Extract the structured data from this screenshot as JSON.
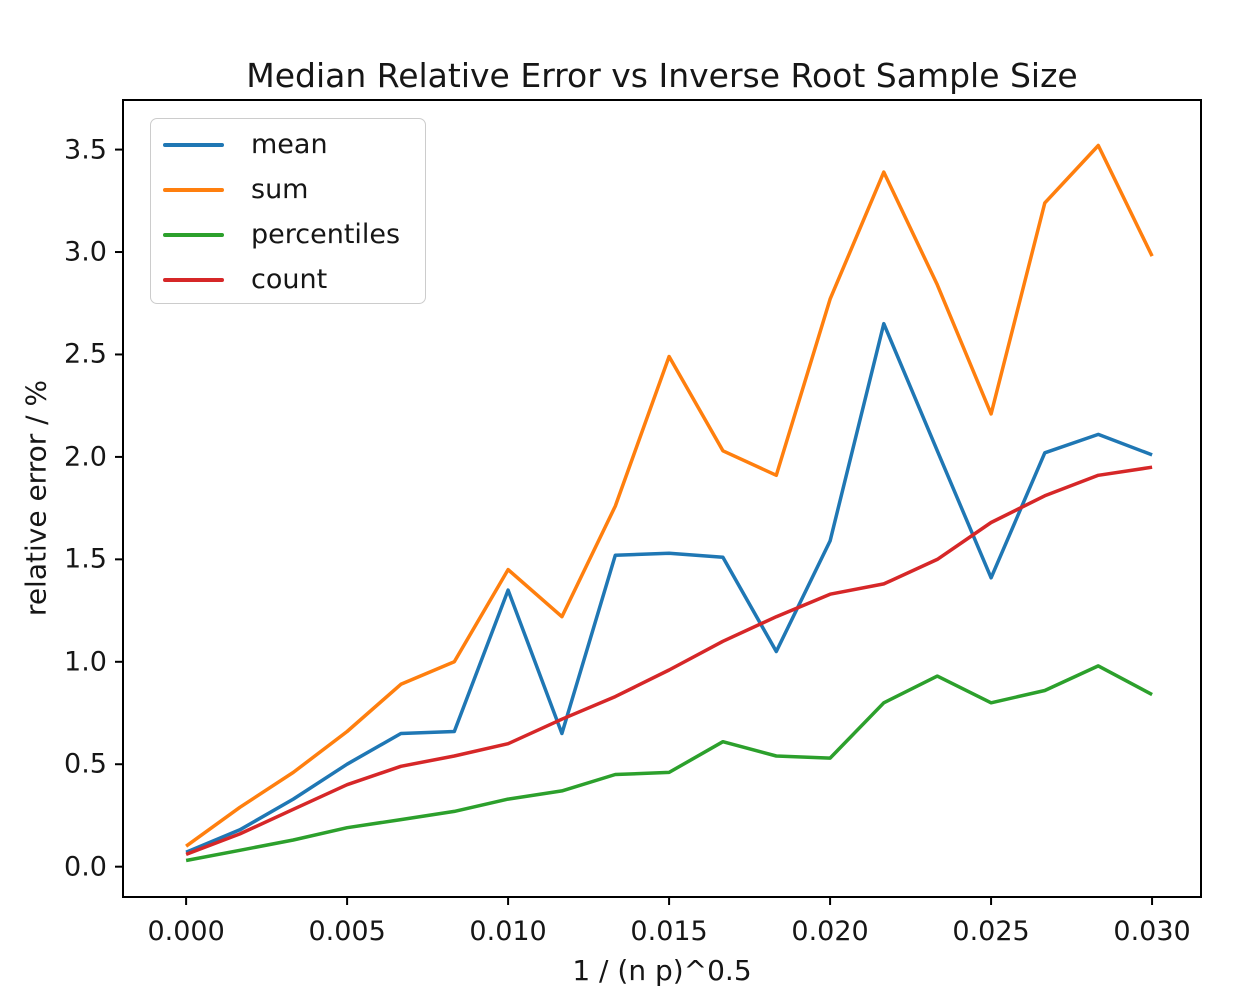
{
  "chart_data": {
    "type": "line",
    "title": "Median Relative Error vs Inverse Root Sample Size",
    "xlabel": "1 / (n p)^0.5",
    "ylabel": "relative error / %",
    "legend_position": "upper left",
    "grid": false,
    "xlim": [
      -0.00196,
      0.03152
    ],
    "ylim": [
      -0.148,
      3.742
    ],
    "x_ticks": {
      "values": [
        0.0,
        0.005,
        0.01,
        0.015,
        0.02,
        0.025,
        0.03
      ],
      "labels": [
        "0.000",
        "0.005",
        "0.010",
        "0.015",
        "0.020",
        "0.025",
        "0.030"
      ]
    },
    "y_ticks": {
      "values": [
        0.0,
        0.5,
        1.0,
        1.5,
        2.0,
        2.5,
        3.0,
        3.5
      ],
      "labels": [
        "0.0",
        "0.5",
        "1.0",
        "1.5",
        "2.0",
        "2.5",
        "3.0",
        "3.5"
      ]
    },
    "x": [
      0.0,
      0.00167,
      0.00333,
      0.005,
      0.00667,
      0.00833,
      0.01,
      0.01167,
      0.01333,
      0.015,
      0.01667,
      0.01833,
      0.02,
      0.02167,
      0.02333,
      0.025,
      0.02667,
      0.02833,
      0.03
    ],
    "series": [
      {
        "name": "mean",
        "color": "#1f77b4",
        "values": [
          0.07,
          0.18,
          0.33,
          0.5,
          0.65,
          0.66,
          1.35,
          0.65,
          1.52,
          1.53,
          1.51,
          1.05,
          1.59,
          2.65,
          2.03,
          1.41,
          2.02,
          2.11,
          2.01
        ]
      },
      {
        "name": "sum",
        "color": "#ff7f0e",
        "values": [
          0.1,
          0.29,
          0.46,
          0.66,
          0.89,
          1.0,
          1.45,
          1.22,
          1.76,
          2.49,
          2.03,
          1.91,
          2.77,
          3.39,
          2.84,
          2.21,
          3.24,
          3.52,
          2.98
        ]
      },
      {
        "name": "percentiles",
        "color": "#2ca02c",
        "values": [
          0.03,
          0.08,
          0.13,
          0.19,
          0.23,
          0.27,
          0.33,
          0.37,
          0.45,
          0.46,
          0.61,
          0.54,
          0.53,
          0.8,
          0.93,
          0.8,
          0.86,
          0.98,
          0.84
        ]
      },
      {
        "name": "count",
        "color": "#d62728",
        "values": [
          0.06,
          0.16,
          0.28,
          0.4,
          0.49,
          0.54,
          0.6,
          0.72,
          0.83,
          0.96,
          1.1,
          1.22,
          1.33,
          1.38,
          1.5,
          1.68,
          1.81,
          1.91,
          1.95
        ]
      }
    ]
  }
}
